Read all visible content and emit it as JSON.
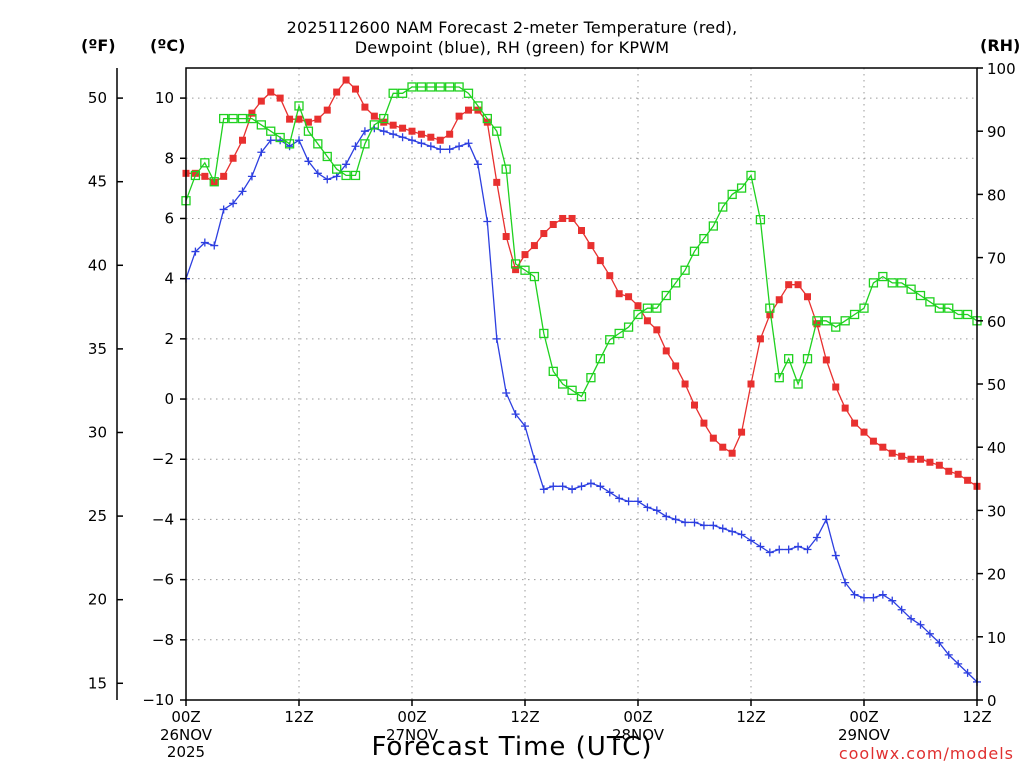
{
  "chart_data": {
    "type": "line",
    "title_line1": "2025112600 NAM Forecast 2-meter Temperature (red),",
    "title_line2": "Dewpoint (blue), RH (green) for KPWM",
    "xlabel": "Forecast Time (UTC)",
    "credit": "coolwx.com/models",
    "unit_f": "(ºF)",
    "unit_c": "(ºC)",
    "unit_rh": "(RH)",
    "x_range_hours": [
      0,
      84
    ],
    "x_ticks": [
      {
        "hour": 0,
        "label": "00Z",
        "date": "26NOV",
        "year": "2025"
      },
      {
        "hour": 12,
        "label": "12Z"
      },
      {
        "hour": 24,
        "label": "00Z",
        "date": "27NOV"
      },
      {
        "hour": 36,
        "label": "12Z"
      },
      {
        "hour": 48,
        "label": "00Z",
        "date": "28NOV"
      },
      {
        "hour": 60,
        "label": "12Z"
      },
      {
        "hour": 72,
        "label": "00Z",
        "date": "29NOV"
      },
      {
        "hour": 84,
        "label": "12Z"
      }
    ],
    "ylim_c": [
      -10,
      11
    ],
    "yticks_c": [
      -10,
      -8,
      -6,
      -4,
      -2,
      0,
      2,
      4,
      6,
      8,
      10
    ],
    "ylim_f": [
      14,
      51.8
    ],
    "yticks_f": [
      15,
      20,
      25,
      30,
      35,
      40,
      45,
      50
    ],
    "ylim_rh": [
      0,
      100
    ],
    "yticks_rh": [
      0,
      10,
      20,
      30,
      40,
      50,
      60,
      70,
      80,
      90,
      100
    ],
    "series": [
      {
        "name": "Temperature",
        "color": "#e8302f",
        "marker": "filled-square",
        "units": "C",
        "hours": [
          0,
          1,
          2,
          3,
          4,
          5,
          6,
          7,
          8,
          9,
          10,
          11,
          12,
          13,
          14,
          15,
          16,
          17,
          18,
          19,
          20,
          21,
          22,
          23,
          24,
          25,
          26,
          27,
          28,
          29,
          30,
          31,
          32,
          33,
          34,
          35,
          36,
          37,
          38,
          39,
          40,
          41,
          42,
          43,
          44,
          45,
          46,
          47,
          48,
          49,
          50,
          51,
          52,
          53,
          54,
          55,
          56,
          57,
          58,
          59,
          60,
          61,
          62,
          63,
          64,
          65,
          66,
          67,
          68,
          69,
          70,
          71,
          72,
          73,
          74,
          75,
          76,
          77,
          78,
          79,
          80,
          81,
          82,
          83,
          84
        ],
        "values": [
          7.5,
          7.5,
          7.4,
          7.2,
          7.4,
          8.0,
          8.6,
          9.5,
          9.9,
          10.2,
          10.0,
          9.3,
          9.3,
          9.2,
          9.3,
          9.6,
          10.2,
          10.6,
          10.3,
          9.7,
          9.4,
          9.2,
          9.1,
          9.0,
          8.9,
          8.8,
          8.7,
          8.6,
          8.8,
          9.4,
          9.6,
          9.6,
          9.2,
          7.2,
          5.4,
          4.3,
          4.8,
          5.1,
          5.5,
          5.8,
          6.0,
          6.0,
          5.6,
          5.1,
          4.6,
          4.1,
          3.5,
          3.4,
          3.1,
          2.6,
          2.3,
          1.6,
          1.1,
          0.5,
          -0.2,
          -0.8,
          -1.3,
          -1.6,
          -1.8,
          -1.1,
          0.5,
          2.0,
          2.8,
          3.3,
          3.8,
          3.8,
          3.4,
          2.5,
          1.3,
          0.4,
          -0.3,
          -0.8,
          -1.1,
          -1.4,
          -1.6,
          -1.8,
          -1.9,
          -2.0,
          -2.0,
          -2.1,
          -2.2,
          -2.4,
          -2.5,
          -2.7,
          -2.9
        ]
      },
      {
        "name": "Dewpoint",
        "color": "#2d3fe0",
        "marker": "plus",
        "units": "C",
        "hours": [
          0,
          1,
          2,
          3,
          4,
          5,
          6,
          7,
          8,
          9,
          10,
          11,
          12,
          13,
          14,
          15,
          16,
          17,
          18,
          19,
          20,
          21,
          22,
          23,
          24,
          25,
          26,
          27,
          28,
          29,
          30,
          31,
          32,
          33,
          34,
          35,
          36,
          37,
          38,
          39,
          40,
          41,
          42,
          43,
          44,
          45,
          46,
          47,
          48,
          49,
          50,
          51,
          52,
          53,
          54,
          55,
          56,
          57,
          58,
          59,
          60,
          61,
          62,
          63,
          64,
          65,
          66,
          67,
          68,
          69,
          70,
          71,
          72,
          73,
          74,
          75,
          76,
          77,
          78,
          79,
          80,
          81,
          82,
          83,
          84
        ],
        "values": [
          4.0,
          4.9,
          5.2,
          5.1,
          6.3,
          6.5,
          6.9,
          7.4,
          8.2,
          8.6,
          8.6,
          8.4,
          8.6,
          7.9,
          7.5,
          7.3,
          7.4,
          7.8,
          8.4,
          8.9,
          9.0,
          8.9,
          8.8,
          8.7,
          8.6,
          8.5,
          8.4,
          8.3,
          8.3,
          8.4,
          8.5,
          7.8,
          5.9,
          2.0,
          0.2,
          -0.5,
          -0.9,
          -2.0,
          -3.0,
          -2.9,
          -2.9,
          -3.0,
          -2.9,
          -2.8,
          -2.9,
          -3.1,
          -3.3,
          -3.4,
          -3.4,
          -3.6,
          -3.7,
          -3.9,
          -4.0,
          -4.1,
          -4.1,
          -4.2,
          -4.2,
          -4.3,
          -4.4,
          -4.5,
          -4.7,
          -4.9,
          -5.1,
          -5.0,
          -5.0,
          -4.9,
          -5.0,
          -4.6,
          -4.0,
          -5.2,
          -6.1,
          -6.5,
          -6.6,
          -6.6,
          -6.5,
          -6.7,
          -7.0,
          -7.3,
          -7.5,
          -7.8,
          -8.1,
          -8.5,
          -8.8,
          -9.1,
          -9.4
        ]
      },
      {
        "name": "RH",
        "color": "#1fd11f",
        "marker": "open-square",
        "units": "%",
        "hours": [
          0,
          1,
          2,
          3,
          4,
          5,
          6,
          7,
          8,
          9,
          10,
          11,
          12,
          13,
          14,
          15,
          16,
          17,
          18,
          19,
          20,
          21,
          22,
          23,
          24,
          25,
          26,
          27,
          28,
          29,
          30,
          31,
          32,
          33,
          34,
          35,
          36,
          37,
          38,
          39,
          40,
          41,
          42,
          43,
          44,
          45,
          46,
          47,
          48,
          49,
          50,
          51,
          52,
          53,
          54,
          55,
          56,
          57,
          58,
          59,
          60,
          61,
          62,
          63,
          64,
          65,
          66,
          67,
          68,
          69,
          70,
          71,
          72,
          73,
          74,
          75,
          76,
          77,
          78,
          79,
          80,
          81,
          82,
          83,
          84
        ],
        "values": [
          79,
          83,
          85,
          82,
          92,
          92,
          92,
          92,
          91,
          90,
          89,
          88,
          94,
          90,
          88,
          86,
          84,
          83,
          83,
          88,
          91,
          92,
          96,
          96,
          97,
          97,
          97,
          97,
          97,
          97,
          96,
          94,
          92,
          90,
          84,
          69,
          68,
          67,
          58,
          52,
          50,
          49,
          48,
          51,
          54,
          57,
          58,
          59,
          61,
          62,
          62,
          64,
          66,
          68,
          71,
          73,
          75,
          78,
          80,
          81,
          83,
          76,
          62,
          51,
          54,
          50,
          54,
          60,
          60,
          59,
          60,
          61,
          62,
          66,
          67,
          66,
          66,
          65,
          64,
          63,
          62,
          62,
          61,
          61,
          60
        ]
      }
    ]
  }
}
